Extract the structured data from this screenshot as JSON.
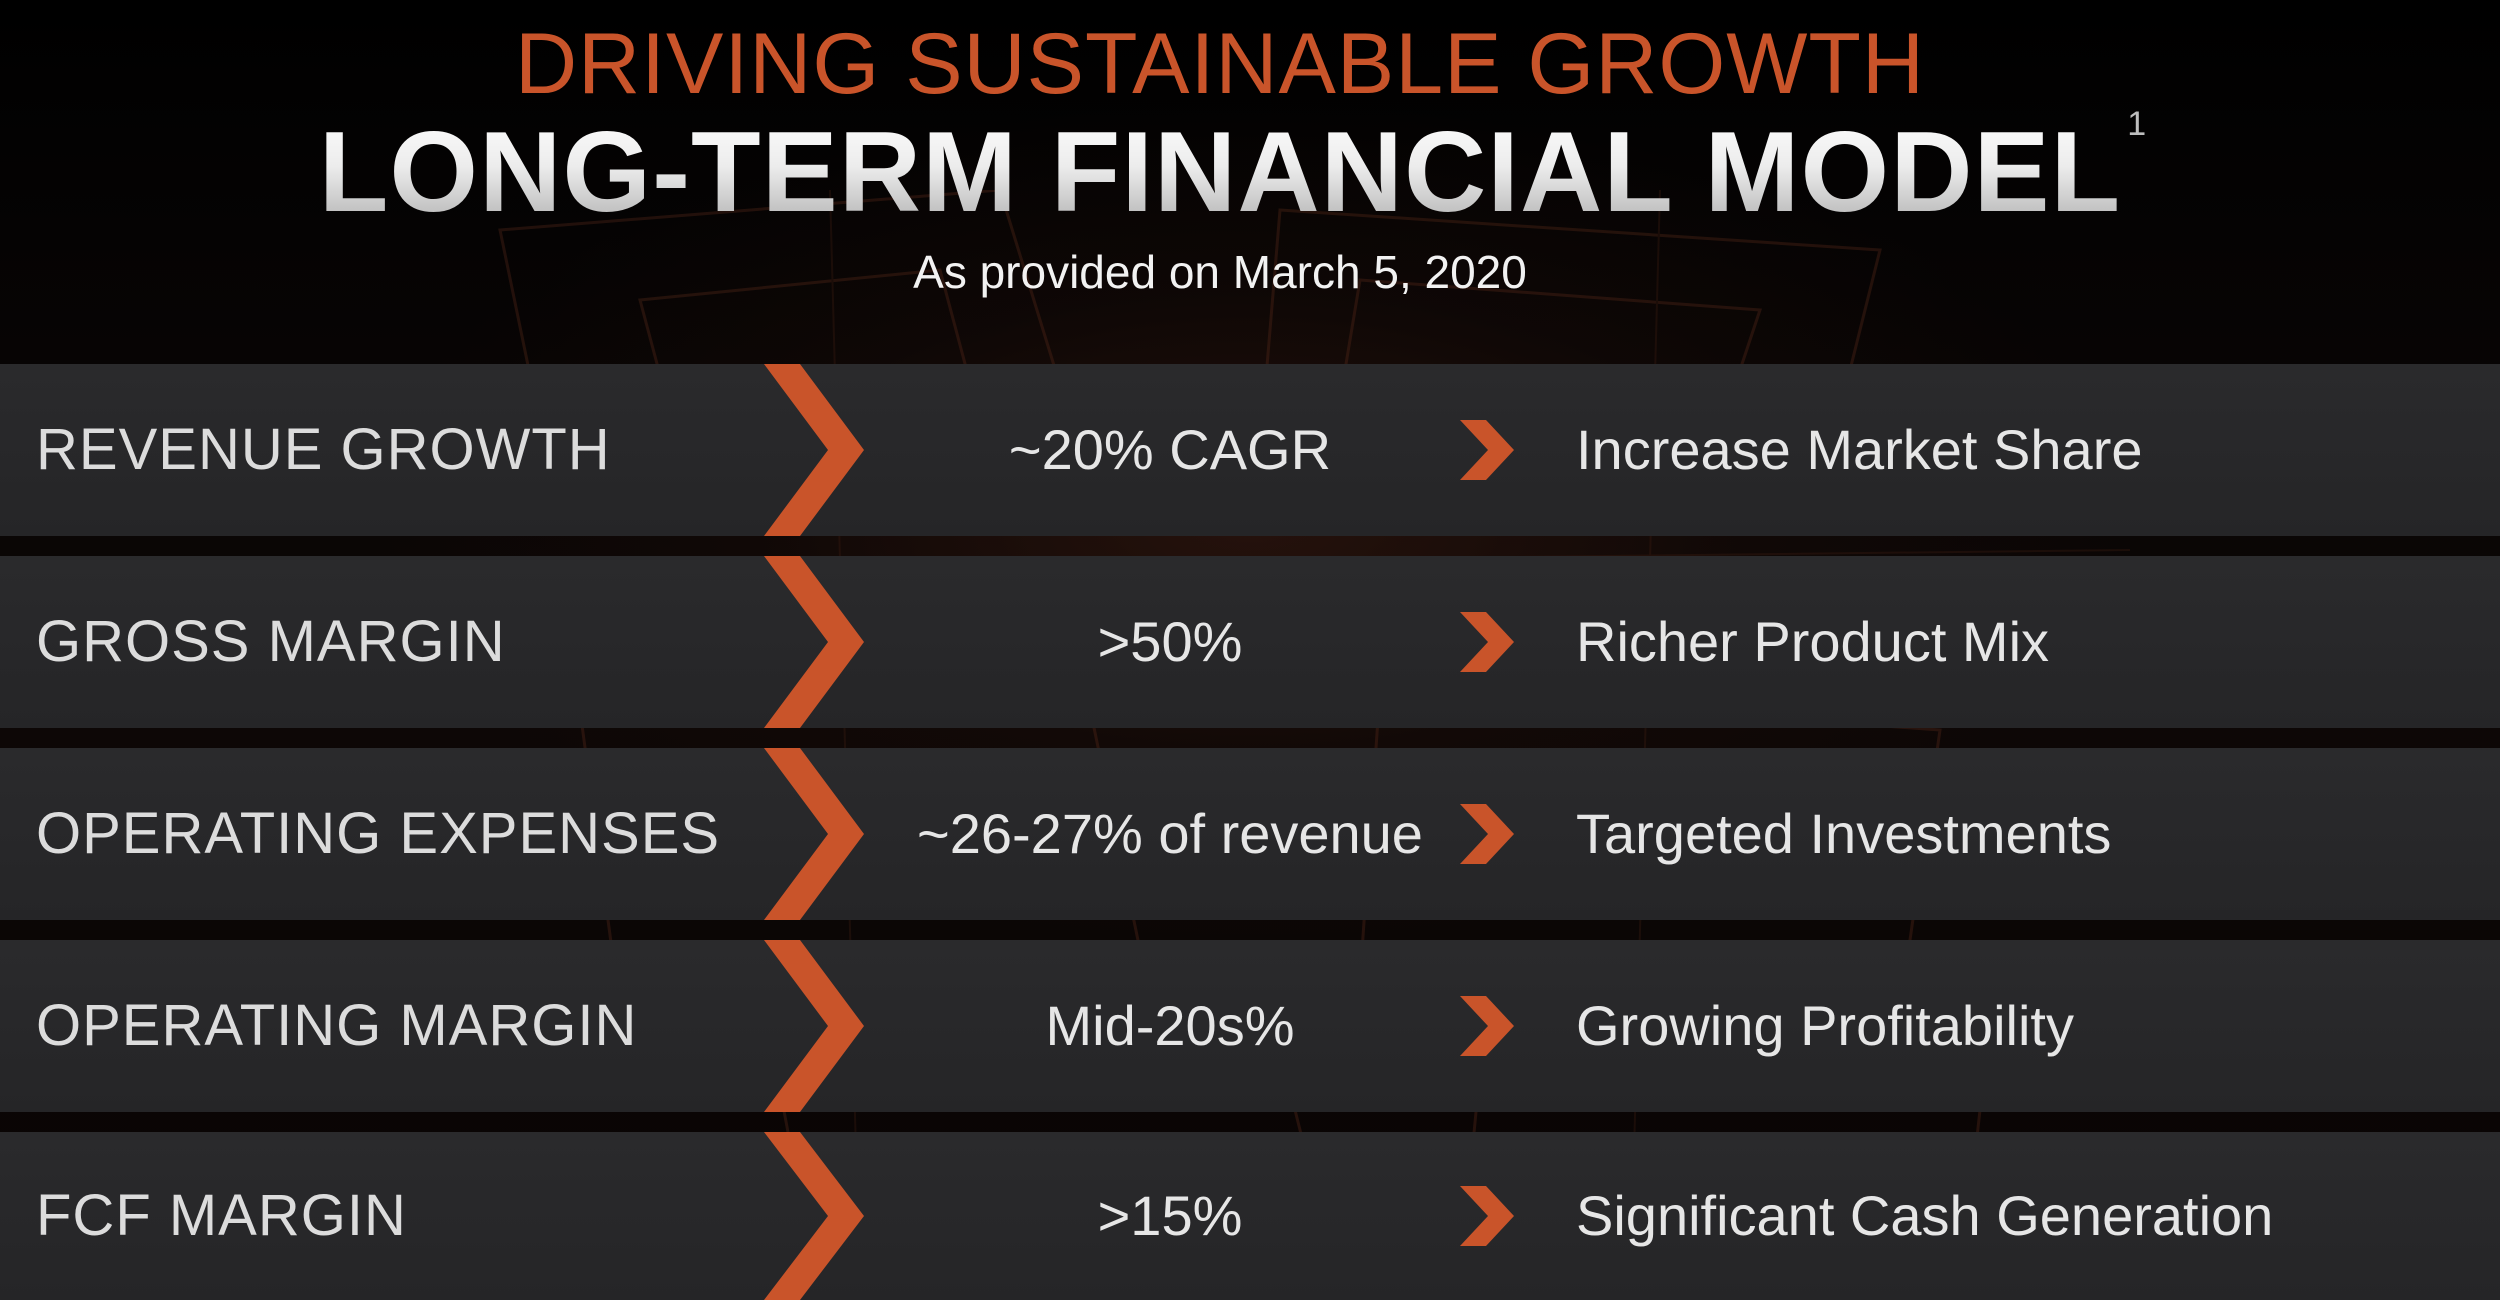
{
  "header": {
    "supertitle": "DRIVING SUSTAINABLE GROWTH",
    "title": "LONG-TERM FINANCIAL MODEL",
    "footnote_marker": "1",
    "subtitle": "As provided on March 5, 2020"
  },
  "colors": {
    "accent": "#c9542a",
    "row_background": "#282829",
    "text": "#e6e6e6"
  },
  "rows": [
    {
      "label": "REVENUE GROWTH",
      "value": "~20% CAGR",
      "driver": "Increase Market Share"
    },
    {
      "label": "GROSS MARGIN",
      "value": ">50%",
      "driver": "Richer Product Mix"
    },
    {
      "label": "OPERATING EXPENSES",
      "value": "~26-27% of revenue",
      "driver": "Targeted Investments"
    },
    {
      "label": "OPERATING MARGIN",
      "value": "Mid-20s%",
      "driver": "Growing Profitability"
    },
    {
      "label": "FCF MARGIN",
      "value": ">15%",
      "driver": "Significant Cash Generation"
    }
  ]
}
